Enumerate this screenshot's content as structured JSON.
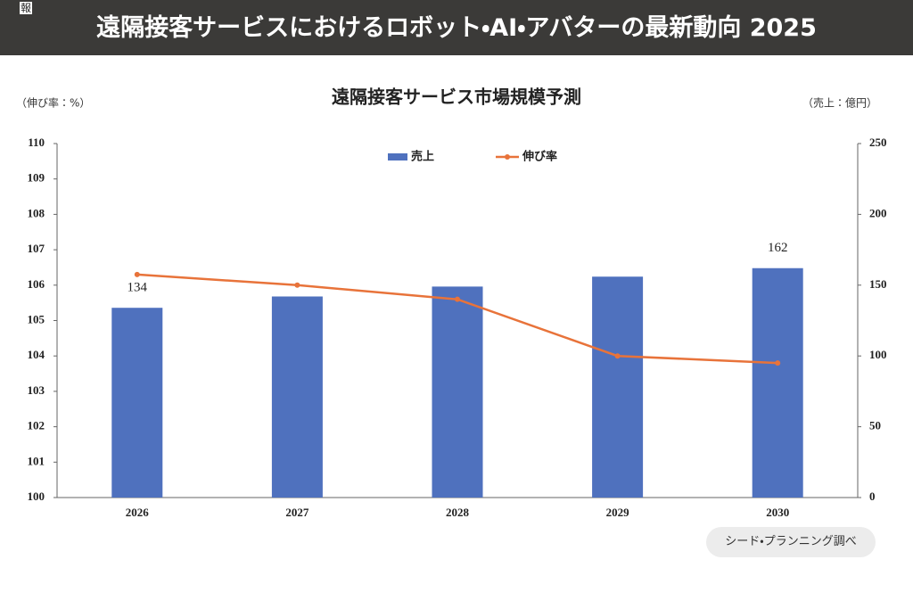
{
  "header": {
    "tag": "報",
    "title": "遠隔接客サービスにおけるロボット・AI・アバターの最新動向 2025"
  },
  "chart_data": {
    "type": "combo",
    "title": "遠隔接客サービス市場規模予測",
    "y_axis_label": "（伸び率：%）",
    "y2_axis_label": "（売上：億円）",
    "categories": [
      "2026",
      "2027",
      "2028",
      "2029",
      "2030"
    ],
    "series": [
      {
        "name": "売上",
        "type": "bar",
        "axis": "y2",
        "color": "#4f71be",
        "values": [
          134,
          142,
          149,
          156,
          162
        ],
        "value_labels": [
          "134",
          null,
          null,
          null,
          "162"
        ]
      },
      {
        "name": "伸び率",
        "type": "line",
        "color": "#e8733a",
        "values": [
          106.3,
          106.0,
          105.6,
          104.0,
          103.8
        ]
      }
    ],
    "ylim": [
      100,
      110
    ],
    "yticks": [
      100,
      101,
      102,
      103,
      104,
      105,
      106,
      107,
      108,
      109,
      110
    ],
    "y2lim": [
      0,
      250
    ],
    "y2ticks": [
      0,
      50,
      100,
      150,
      200,
      250
    ],
    "legend": "top",
    "grid": false
  },
  "source": "シード・プランニング調べ"
}
